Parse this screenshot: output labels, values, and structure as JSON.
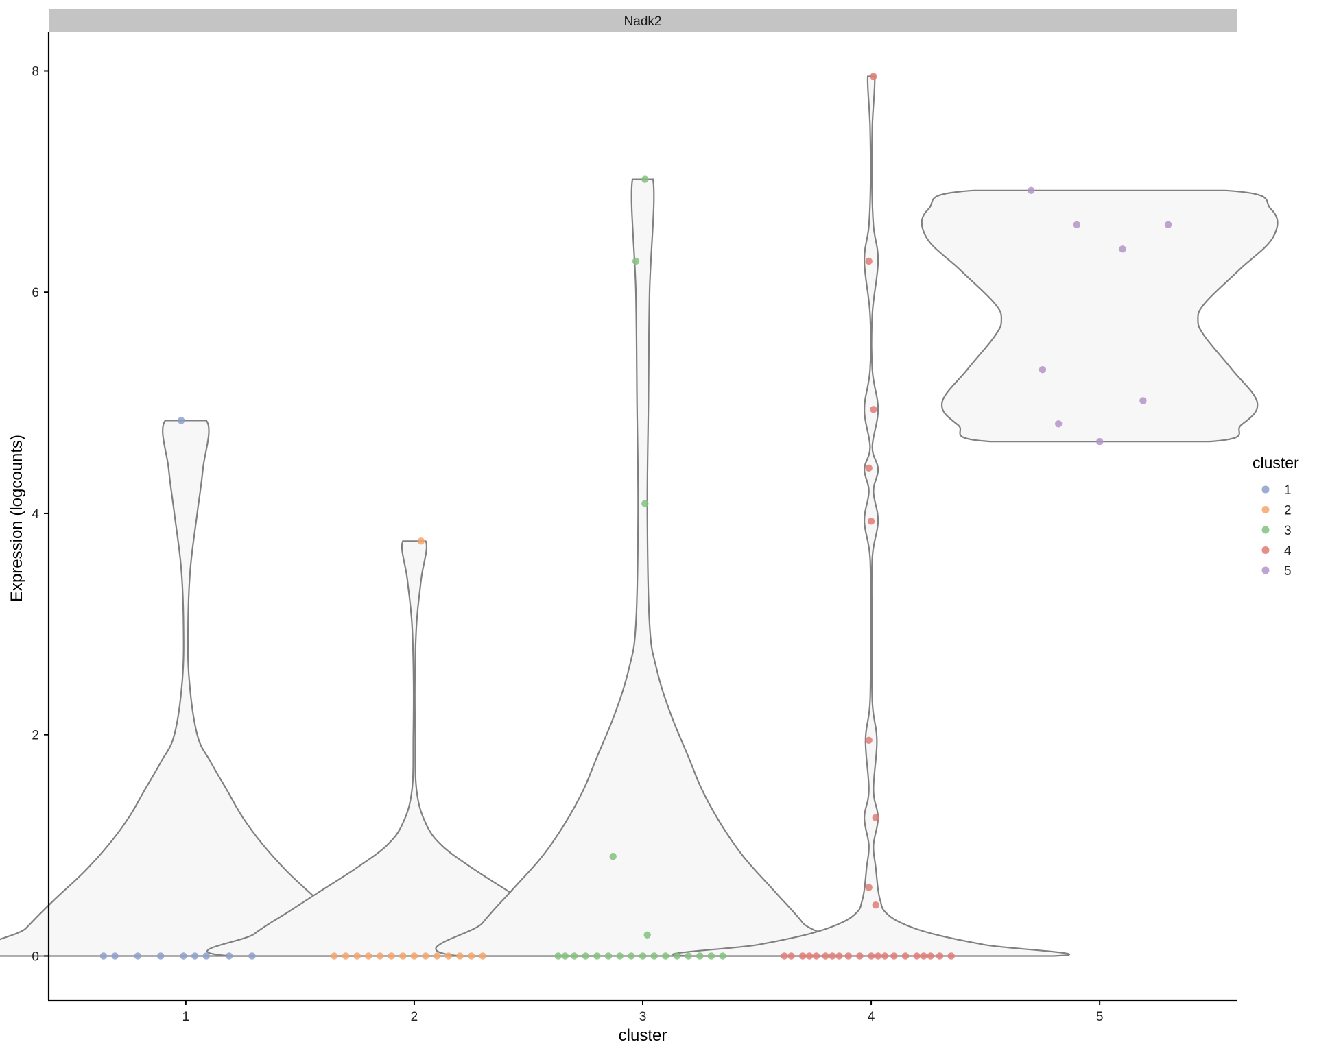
{
  "chart_data": {
    "type": "violin",
    "facet_label": "Nadk2",
    "xlabel": "cluster",
    "ylabel": "Expression (logcounts)",
    "categories": [
      "1",
      "2",
      "3",
      "4",
      "5"
    ],
    "y_ticks": [
      0,
      2,
      4,
      6,
      8
    ],
    "ylim": [
      -0.4,
      8.35
    ],
    "grid": false,
    "legend": {
      "title": "cluster",
      "position": "right",
      "entries": [
        "1",
        "2",
        "3",
        "4",
        "5"
      ]
    },
    "colors": {
      "1": "#8da0cb",
      "2": "#f4a46a",
      "3": "#82c17c",
      "4": "#e07b77",
      "5": "#b494c8"
    },
    "violin_fill": "#f7f7f7",
    "violin_stroke": "#808080",
    "facet_fill": "#c4c4c4",
    "violins": [
      {
        "cluster": "1",
        "profile": [
          [
            0,
            0.81
          ],
          [
            0.25,
            0.7
          ],
          [
            0.5,
            0.58
          ],
          [
            0.75,
            0.45
          ],
          [
            1.0,
            0.34
          ],
          [
            1.25,
            0.25
          ],
          [
            1.5,
            0.18
          ],
          [
            1.75,
            0.11
          ],
          [
            2.0,
            0.05
          ],
          [
            2.5,
            0.015
          ],
          [
            3.0,
            0.01
          ],
          [
            3.5,
            0.02
          ],
          [
            4.0,
            0.05
          ],
          [
            4.4,
            0.075
          ],
          [
            4.84,
            0.09
          ]
        ]
      },
      {
        "cluster": "2",
        "profile": [
          [
            0,
            0.8
          ],
          [
            0.2,
            0.7
          ],
          [
            0.4,
            0.55
          ],
          [
            0.6,
            0.4
          ],
          [
            0.8,
            0.25
          ],
          [
            1.0,
            0.12
          ],
          [
            1.2,
            0.05
          ],
          [
            1.5,
            0.01
          ],
          [
            2.0,
            0.004
          ],
          [
            2.5,
            0.003
          ],
          [
            3.0,
            0.01
          ],
          [
            3.4,
            0.03
          ],
          [
            3.75,
            0.05
          ]
        ]
      },
      {
        "cluster": "3",
        "profile": [
          [
            0,
            0.8
          ],
          [
            0.3,
            0.7
          ],
          [
            0.6,
            0.57
          ],
          [
            0.9,
            0.44
          ],
          [
            1.2,
            0.34
          ],
          [
            1.5,
            0.26
          ],
          [
            1.8,
            0.2
          ],
          [
            2.2,
            0.12
          ],
          [
            2.6,
            0.06
          ],
          [
            3.0,
            0.03
          ],
          [
            4.0,
            0.02
          ],
          [
            5.0,
            0.025
          ],
          [
            6.0,
            0.03
          ],
          [
            7.02,
            0.045
          ]
        ]
      },
      {
        "cluster": "4",
        "profile": [
          [
            0,
            0.8
          ],
          [
            0.1,
            0.5
          ],
          [
            0.2,
            0.27
          ],
          [
            0.3,
            0.13
          ],
          [
            0.4,
            0.06
          ],
          [
            0.5,
            0.04
          ],
          [
            0.6,
            0.03
          ],
          [
            0.8,
            0.02
          ],
          [
            1.0,
            0.01
          ],
          [
            1.25,
            0.03
          ],
          [
            1.5,
            0.01
          ],
          [
            1.95,
            0.025
          ],
          [
            2.3,
            0.005
          ],
          [
            3.0,
            0.003
          ],
          [
            3.6,
            0.005
          ],
          [
            3.93,
            0.03
          ],
          [
            4.2,
            0.01
          ],
          [
            4.4,
            0.03
          ],
          [
            4.6,
            0.005
          ],
          [
            4.94,
            0.03
          ],
          [
            5.3,
            0.005
          ],
          [
            5.8,
            0.005
          ],
          [
            6.28,
            0.03
          ],
          [
            6.6,
            0.01
          ],
          [
            7.0,
            0.003
          ],
          [
            7.5,
            0.005
          ],
          [
            7.95,
            0.015
          ]
        ]
      },
      {
        "cluster": "5",
        "profile": [
          [
            4.65,
            0.48
          ],
          [
            4.8,
            0.62
          ],
          [
            5.0,
            0.69
          ],
          [
            5.3,
            0.58
          ],
          [
            5.6,
            0.46
          ],
          [
            5.75,
            0.43
          ],
          [
            5.9,
            0.46
          ],
          [
            6.2,
            0.61
          ],
          [
            6.5,
            0.76
          ],
          [
            6.75,
            0.75
          ],
          [
            6.92,
            0.55
          ]
        ]
      }
    ],
    "points": [
      {
        "cluster": "1",
        "x": 0.64,
        "y": 0
      },
      {
        "cluster": "1",
        "x": 0.69,
        "y": 0
      },
      {
        "cluster": "1",
        "x": 0.79,
        "y": 0
      },
      {
        "cluster": "1",
        "x": 0.89,
        "y": 0
      },
      {
        "cluster": "1",
        "x": 0.99,
        "y": 0
      },
      {
        "cluster": "1",
        "x": 1.04,
        "y": 0
      },
      {
        "cluster": "1",
        "x": 1.09,
        "y": 0
      },
      {
        "cluster": "1",
        "x": 1.19,
        "y": 0
      },
      {
        "cluster": "1",
        "x": 1.29,
        "y": 0
      },
      {
        "cluster": "1",
        "x": 0.98,
        "y": 4.84
      },
      {
        "cluster": "2",
        "x": 1.65,
        "y": 0
      },
      {
        "cluster": "2",
        "x": 1.7,
        "y": 0
      },
      {
        "cluster": "2",
        "x": 1.75,
        "y": 0
      },
      {
        "cluster": "2",
        "x": 1.8,
        "y": 0
      },
      {
        "cluster": "2",
        "x": 1.85,
        "y": 0
      },
      {
        "cluster": "2",
        "x": 1.9,
        "y": 0
      },
      {
        "cluster": "2",
        "x": 1.95,
        "y": 0
      },
      {
        "cluster": "2",
        "x": 2.0,
        "y": 0
      },
      {
        "cluster": "2",
        "x": 2.05,
        "y": 0
      },
      {
        "cluster": "2",
        "x": 2.1,
        "y": 0
      },
      {
        "cluster": "2",
        "x": 2.15,
        "y": 0
      },
      {
        "cluster": "2",
        "x": 2.2,
        "y": 0
      },
      {
        "cluster": "2",
        "x": 2.25,
        "y": 0
      },
      {
        "cluster": "2",
        "x": 2.3,
        "y": 0
      },
      {
        "cluster": "2",
        "x": 2.03,
        "y": 3.75
      },
      {
        "cluster": "3",
        "x": 2.63,
        "y": 0
      },
      {
        "cluster": "3",
        "x": 2.66,
        "y": 0
      },
      {
        "cluster": "3",
        "x": 2.7,
        "y": 0
      },
      {
        "cluster": "3",
        "x": 2.75,
        "y": 0
      },
      {
        "cluster": "3",
        "x": 2.8,
        "y": 0
      },
      {
        "cluster": "3",
        "x": 2.85,
        "y": 0
      },
      {
        "cluster": "3",
        "x": 2.9,
        "y": 0
      },
      {
        "cluster": "3",
        "x": 2.95,
        "y": 0
      },
      {
        "cluster": "3",
        "x": 3.0,
        "y": 0
      },
      {
        "cluster": "3",
        "x": 3.05,
        "y": 0
      },
      {
        "cluster": "3",
        "x": 3.1,
        "y": 0
      },
      {
        "cluster": "3",
        "x": 3.15,
        "y": 0
      },
      {
        "cluster": "3",
        "x": 3.2,
        "y": 0
      },
      {
        "cluster": "3",
        "x": 3.25,
        "y": 0
      },
      {
        "cluster": "3",
        "x": 3.3,
        "y": 0
      },
      {
        "cluster": "3",
        "x": 3.35,
        "y": 0
      },
      {
        "cluster": "3",
        "x": 3.02,
        "y": 0.19
      },
      {
        "cluster": "3",
        "x": 2.87,
        "y": 0.9
      },
      {
        "cluster": "3",
        "x": 3.01,
        "y": 4.09
      },
      {
        "cluster": "3",
        "x": 2.97,
        "y": 6.28
      },
      {
        "cluster": "3",
        "x": 3.01,
        "y": 7.02
      },
      {
        "cluster": "4",
        "x": 3.62,
        "y": 0
      },
      {
        "cluster": "4",
        "x": 3.65,
        "y": 0
      },
      {
        "cluster": "4",
        "x": 3.7,
        "y": 0
      },
      {
        "cluster": "4",
        "x": 3.73,
        "y": 0
      },
      {
        "cluster": "4",
        "x": 3.76,
        "y": 0
      },
      {
        "cluster": "4",
        "x": 3.8,
        "y": 0
      },
      {
        "cluster": "4",
        "x": 3.83,
        "y": 0
      },
      {
        "cluster": "4",
        "x": 3.86,
        "y": 0
      },
      {
        "cluster": "4",
        "x": 3.9,
        "y": 0
      },
      {
        "cluster": "4",
        "x": 3.95,
        "y": 0
      },
      {
        "cluster": "4",
        "x": 4.0,
        "y": 0
      },
      {
        "cluster": "4",
        "x": 4.03,
        "y": 0
      },
      {
        "cluster": "4",
        "x": 4.06,
        "y": 0
      },
      {
        "cluster": "4",
        "x": 4.1,
        "y": 0
      },
      {
        "cluster": "4",
        "x": 4.15,
        "y": 0
      },
      {
        "cluster": "4",
        "x": 4.2,
        "y": 0
      },
      {
        "cluster": "4",
        "x": 4.23,
        "y": 0
      },
      {
        "cluster": "4",
        "x": 4.26,
        "y": 0
      },
      {
        "cluster": "4",
        "x": 4.3,
        "y": 0
      },
      {
        "cluster": "4",
        "x": 4.35,
        "y": 0
      },
      {
        "cluster": "4",
        "x": 4.02,
        "y": 0.46
      },
      {
        "cluster": "4",
        "x": 3.99,
        "y": 0.62
      },
      {
        "cluster": "4",
        "x": 4.02,
        "y": 1.25
      },
      {
        "cluster": "4",
        "x": 3.99,
        "y": 1.95
      },
      {
        "cluster": "4",
        "x": 4.0,
        "y": 3.93
      },
      {
        "cluster": "4",
        "x": 3.99,
        "y": 4.41
      },
      {
        "cluster": "4",
        "x": 4.01,
        "y": 4.94
      },
      {
        "cluster": "4",
        "x": 3.99,
        "y": 6.28
      },
      {
        "cluster": "4",
        "x": 4.01,
        "y": 7.95
      },
      {
        "cluster": "5",
        "x": 4.7,
        "y": 6.92
      },
      {
        "cluster": "5",
        "x": 4.9,
        "y": 6.61
      },
      {
        "cluster": "5",
        "x": 5.3,
        "y": 6.61
      },
      {
        "cluster": "5",
        "x": 5.1,
        "y": 6.39
      },
      {
        "cluster": "5",
        "x": 4.75,
        "y": 5.3
      },
      {
        "cluster": "5",
        "x": 5.19,
        "y": 5.02
      },
      {
        "cluster": "5",
        "x": 4.82,
        "y": 4.81
      },
      {
        "cluster": "5",
        "x": 5.0,
        "y": 4.65
      }
    ]
  }
}
